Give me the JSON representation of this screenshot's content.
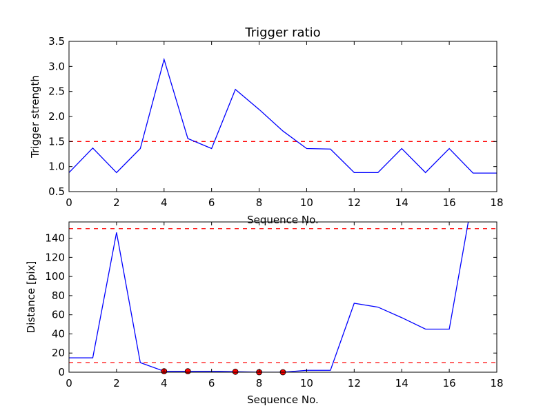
{
  "colors": {
    "series": "#0000ff",
    "threshold": "#ff0000",
    "marker": "#ff0000",
    "axis": "#000000",
    "background": "#ffffff"
  },
  "chart_data": [
    {
      "type": "line",
      "title": "Trigger ratio",
      "xlabel": "Sequence No.",
      "ylabel": "Trigger strength",
      "xlim": [
        0,
        18
      ],
      "ylim": [
        0.5,
        3.5
      ],
      "grid": false,
      "xticks": [
        0,
        2,
        4,
        6,
        8,
        10,
        12,
        14,
        16,
        18
      ],
      "yticks": [
        0.5,
        1.0,
        1.5,
        2.0,
        2.5,
        3.0,
        3.5
      ],
      "ytick_labels": [
        "0.5",
        "1.0",
        "1.5",
        "2.0",
        "2.5",
        "3.0",
        "3.5"
      ],
      "series": [
        {
          "x": [
            0,
            1,
            2,
            3,
            4,
            5,
            6,
            7,
            8,
            9,
            10,
            11,
            12,
            13,
            14,
            15,
            16,
            17,
            18
          ],
          "y": [
            0.88,
            1.37,
            0.88,
            1.36,
            3.14,
            1.56,
            1.36,
            2.54,
            2.14,
            1.71,
            1.36,
            1.35,
            0.88,
            0.88,
            1.36,
            0.88,
            1.36,
            0.87,
            0.87
          ]
        }
      ],
      "thresholds": [
        1.5
      ]
    },
    {
      "type": "line",
      "title": "",
      "xlabel": "Sequence No.",
      "ylabel": "Distance [pix]",
      "xlim": [
        0,
        18
      ],
      "ylim": [
        0,
        157
      ],
      "grid": false,
      "xticks": [
        0,
        2,
        4,
        6,
        8,
        10,
        12,
        14,
        16,
        18
      ],
      "yticks": [
        0,
        20,
        40,
        60,
        80,
        100,
        120,
        140
      ],
      "ytick_labels": [
        "0",
        "20",
        "40",
        "60",
        "80",
        "100",
        "120",
        "140"
      ],
      "series": [
        {
          "x": [
            0,
            1,
            2,
            3,
            4,
            5,
            6,
            7,
            8,
            9,
            10,
            11,
            12,
            13,
            14,
            15,
            16,
            16.8
          ],
          "y": [
            15,
            15,
            146,
            10,
            1,
            1,
            1,
            0.5,
            0,
            0,
            2,
            2,
            72,
            68,
            57,
            45,
            45,
            157
          ]
        }
      ],
      "markers": {
        "x": [
          4,
          5,
          7,
          8,
          9
        ],
        "y": [
          1,
          1,
          0.5,
          0,
          0
        ]
      },
      "thresholds": [
        10,
        150
      ]
    }
  ]
}
